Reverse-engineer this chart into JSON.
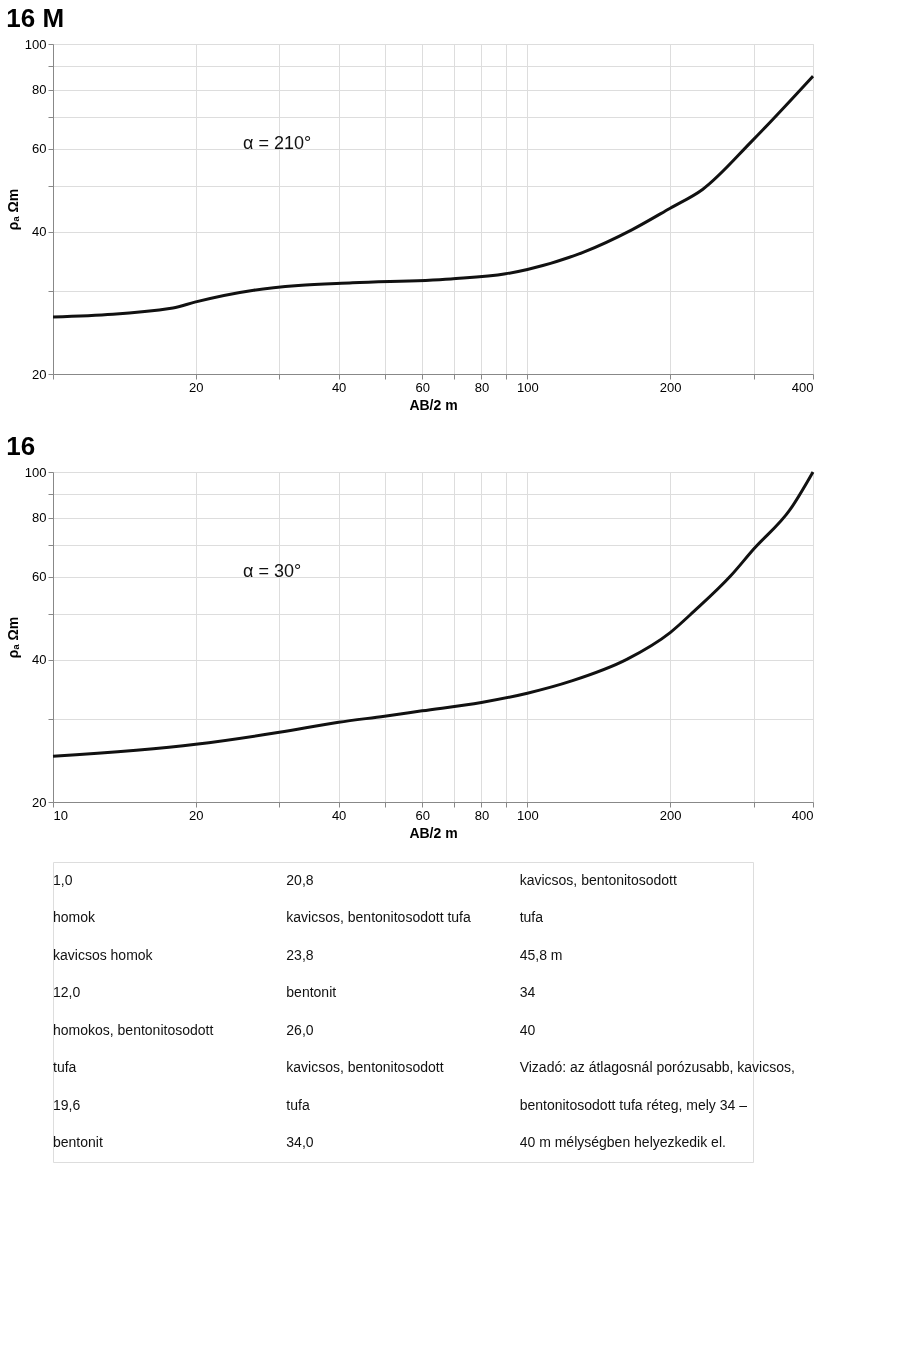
{
  "chart_data": [
    {
      "type": "line",
      "title": "16 M",
      "xlabel": "AB/2 m",
      "ylabel": "ρₐ Ωm",
      "log": "xy",
      "grid": true,
      "marker": "none",
      "line_style": "solid",
      "annotations": [
        "α = 210°"
      ],
      "xlim": [
        10,
        400
      ],
      "ylim": [
        20,
        100
      ],
      "xticks": [
        {
          "value": 10,
          "label": null
        },
        20,
        {
          "value": 30,
          "label": null
        },
        40,
        {
          "value": 50,
          "label": null
        },
        60,
        {
          "value": 70,
          "label": null
        },
        80,
        {
          "value": 90,
          "label": null
        },
        100,
        200,
        {
          "value": 300,
          "label": null
        },
        400
      ],
      "yticks": [
        20,
        {
          "value": 30,
          "label": null
        },
        40,
        {
          "value": 50,
          "label": null
        },
        60,
        {
          "value": 70,
          "label": null
        },
        80,
        {
          "value": 90,
          "label": null
        },
        100
      ],
      "x": [
        10,
        17.9,
        19.9,
        26.5,
        32.9,
        42.8,
        69,
        90,
        100,
        131,
        166,
        200,
        234,
        297,
        400
      ],
      "series": [
        {
          "color": "#111111",
          "values": [
            26.4,
            27.6,
            28.4,
            30.1,
            30.8,
            31.2,
            31.8,
            32.6,
            33.3,
            36.2,
            40.4,
            44.9,
            49.2,
            62.2,
            85.5
          ]
        }
      ]
    },
    {
      "type": "line",
      "title": "16",
      "xlabel": "AB/2 m",
      "ylabel": "ρₐ Ωm",
      "log": "xy",
      "grid": true,
      "marker": "none",
      "line_style": "solid",
      "annotations": [
        "α = 30°"
      ],
      "xlim": [
        10,
        400
      ],
      "ylim": [
        20,
        100
      ],
      "xticks": [
        10,
        20,
        {
          "value": 30,
          "label": null
        },
        40,
        {
          "value": 50,
          "label": null
        },
        60,
        {
          "value": 70,
          "label": null
        },
        80,
        {
          "value": 90,
          "label": null
        },
        100,
        200,
        {
          "value": 300,
          "label": null
        },
        400
      ],
      "yticks": [
        20,
        {
          "value": 30,
          "label": null
        },
        40,
        {
          "value": 50,
          "label": null
        },
        60,
        {
          "value": 70,
          "label": null
        },
        80,
        {
          "value": 90,
          "label": null
        },
        100
      ],
      "x": [
        10,
        20,
        30,
        40,
        50,
        60,
        80,
        100,
        124,
        162,
        200,
        225,
        268,
        300,
        359,
        400
      ],
      "series": [
        {
          "color": "#111111",
          "values": [
            25.0,
            26.5,
            28.1,
            29.5,
            30.4,
            31.2,
            32.5,
            34.0,
            36.1,
            40.1,
            45.7,
            50.8,
            60.2,
            68.7,
            83.6,
            100
          ]
        }
      ]
    },
    {
      "type": "other",
      "annotations": [
        "1,0",
        "homok",
        "kavicsos homok",
        "12,0",
        "homokos, bentonitosodott",
        "tufa",
        "19,6",
        "bentonit",
        "20,8",
        "kavicsos, bentonitosodott tufa",
        "23,8",
        "bentonit",
        "26,0",
        "kavicsos, bentonitosodott",
        "tufa",
        "34,0",
        "kavicsos, bentonitosodott",
        "tufa",
        "45,8 m",
        "34",
        "40",
        "Vizadó: az átlagosnál porózusabb, kavicsos,",
        "bentonitosodott tufa réteg, mely 34 –",
        "40 m mélységben helyezkedik el."
      ]
    }
  ]
}
